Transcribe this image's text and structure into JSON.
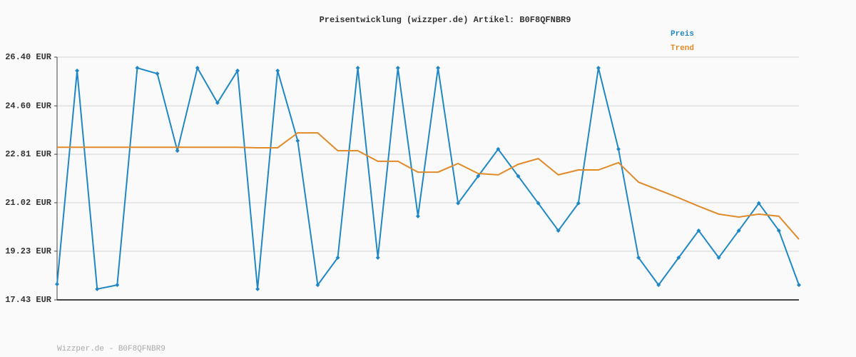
{
  "chart_data": {
    "type": "line",
    "title": "Preisentwicklung (wizzper.de) Artikel: B0F8QFNBR9",
    "footer": "Wizzper.de - B0F8QFNBR9",
    "categories": [
      null,
      null,
      null,
      null,
      null,
      null,
      null,
      null,
      null,
      null,
      null,
      null,
      null,
      null,
      null,
      null,
      null,
      null,
      null,
      null,
      null,
      null,
      null,
      null,
      null,
      null,
      null,
      null,
      null,
      null,
      null,
      null,
      null,
      null,
      null,
      null,
      null,
      null
    ],
    "series": [
      {
        "name": "Preis",
        "color": "#1f88c4",
        "markers": true,
        "values": [
          18.01,
          25.9,
          17.83,
          17.98,
          26.0,
          25.79,
          22.94,
          26.0,
          24.71,
          25.9,
          17.83,
          25.9,
          23.31,
          17.98,
          18.99,
          26.0,
          18.99,
          26.0,
          20.52,
          26.0,
          21.0,
          22.0,
          23.0,
          22.0,
          21.0,
          19.99,
          21.0,
          26.0,
          23.0,
          18.99,
          17.98,
          18.99,
          19.99,
          18.99,
          19.99,
          21.0,
          19.99,
          17.98
        ]
      },
      {
        "name": "Trend",
        "color": "#e08a2a",
        "markers": false,
        "values": [
          23.07,
          23.07,
          23.07,
          23.07,
          23.07,
          23.07,
          23.07,
          23.07,
          23.07,
          23.07,
          23.05,
          23.05,
          23.6,
          23.6,
          22.94,
          22.94,
          22.55,
          22.55,
          22.15,
          22.15,
          22.47,
          22.1,
          22.05,
          22.44,
          22.65,
          22.05,
          22.23,
          22.23,
          22.5,
          21.78,
          21.49,
          21.2,
          20.89,
          20.6,
          20.49,
          20.6,
          20.52,
          19.67
        ]
      }
    ],
    "ylim": [
      17.43,
      26.4
    ],
    "yticks": [
      {
        "value": 17.43,
        "label": "17.43 EUR"
      },
      {
        "value": 19.23,
        "label": "19.23 EUR"
      },
      {
        "value": 21.02,
        "label": "21.02 EUR"
      },
      {
        "value": 22.81,
        "label": "22.81 EUR"
      },
      {
        "value": 24.6,
        "label": "24.60 EUR"
      },
      {
        "value": 26.4,
        "label": "26.40 EUR"
      }
    ],
    "grid": true
  }
}
